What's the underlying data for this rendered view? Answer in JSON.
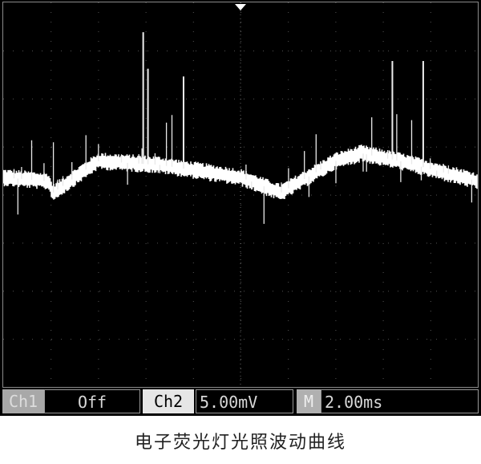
{
  "chart_data": {
    "type": "line",
    "title": "",
    "xlabel": "",
    "ylabel": "",
    "grid": true,
    "divisions": {
      "x": 10,
      "y": 8
    },
    "x_unit": "ms",
    "y_unit": "mV",
    "xlim": [
      0,
      20
    ],
    "ylim": [
      -20,
      20
    ],
    "baseline": {
      "x": [
        0,
        1.9,
        2.1,
        4,
        6.6,
        10,
        11.7,
        14,
        15.1,
        16.7,
        20
      ],
      "y": [
        1.8,
        1.4,
        0.2,
        3.5,
        3.1,
        1.8,
        0.2,
        3.5,
        4.3,
        3.5,
        1.4
      ]
    },
    "spikes": {
      "x": [
        5.9,
        6.1,
        7.6,
        16.4,
        17.7
      ],
      "y": [
        16.9,
        13.1,
        12.3,
        13.9,
        13.9
      ]
    },
    "trace_color": "#ffffff"
  },
  "status": {
    "ch1_label": "Ch1",
    "ch1_value": "Off",
    "ch2_label": "Ch2",
    "ch2_value": "5.00mV",
    "time_label": "M",
    "time_value": "2.00ms"
  },
  "caption": "电子荧光灯光照波动曲线"
}
